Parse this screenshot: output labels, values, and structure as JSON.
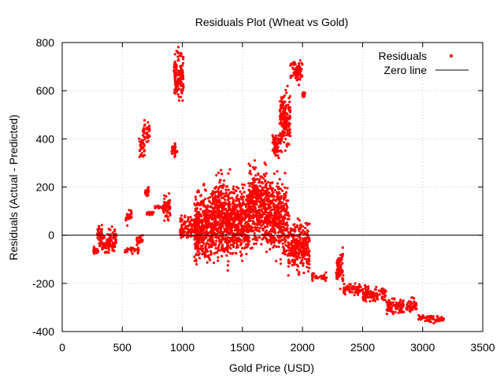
{
  "chart_data": {
    "type": "scatter",
    "title": "Residuals Plot (Wheat vs Gold)",
    "xlabel": "Gold Price (USD)",
    "ylabel": "Residuals (Actual - Predicted)",
    "xlim": [
      0,
      3500
    ],
    "ylim": [
      -400,
      800
    ],
    "xticks": [
      "0",
      "500",
      "1000",
      "1500",
      "2000",
      "2500",
      "3000",
      "3500"
    ],
    "yticks": [
      "-400",
      "-200",
      "0",
      "200",
      "400",
      "600",
      "800"
    ],
    "grid": true,
    "legend_position": "top-right",
    "colors": {
      "points": "#ff0000",
      "zero_line": "#000000",
      "grid": "#c8c8c8"
    },
    "series": [
      {
        "name": "Residuals",
        "style": "points",
        "clusters": [
          {
            "x": [
              255,
              300
            ],
            "y": [
              -90,
              -40
            ]
          },
          {
            "x": [
              290,
              345
            ],
            "y": [
              -80,
              60
            ]
          },
          {
            "x": [
              340,
              400
            ],
            "y": [
              -90,
              20
            ]
          },
          {
            "x": [
              380,
              450
            ],
            "y": [
              -95,
              50
            ]
          },
          {
            "x": [
              530,
              580
            ],
            "y": [
              30,
              130
            ]
          },
          {
            "x": [
              520,
              640
            ],
            "y": [
              -80,
              -40
            ]
          },
          {
            "x": [
              620,
              670
            ],
            "y": [
              -50,
              10
            ]
          },
          {
            "x": [
              640,
              690
            ],
            "y": [
              300,
              430
            ]
          },
          {
            "x": [
              670,
              730
            ],
            "y": [
              380,
              490
            ]
          },
          {
            "x": [
              690,
              720
            ],
            "y": [
              150,
              210
            ]
          },
          {
            "x": [
              700,
              760
            ],
            "y": [
              80,
              100
            ]
          },
          {
            "x": [
              760,
              860
            ],
            "y": [
              110,
              125
            ]
          },
          {
            "x": [
              840,
              900
            ],
            "y": [
              40,
              190
            ]
          },
          {
            "x": [
              910,
              960
            ],
            "y": [
              310,
              390
            ]
          },
          {
            "x": [
              930,
              1010
            ],
            "y": [
              520,
              800
            ]
          },
          {
            "x": [
              980,
              1140
            ],
            "y": [
              -50,
              100
            ]
          },
          {
            "x": [
              1100,
              1250
            ],
            "y": [
              -180,
              240
            ]
          },
          {
            "x": [
              1250,
              1400
            ],
            "y": [
              -180,
              320
            ]
          },
          {
            "x": [
              1400,
              1560
            ],
            "y": [
              -130,
              250
            ]
          },
          {
            "x": [
              1550,
              1700
            ],
            "y": [
              -100,
              340
            ]
          },
          {
            "x": [
              1700,
              1880
            ],
            "y": [
              -150,
              300
            ]
          },
          {
            "x": [
              1750,
              1830
            ],
            "y": [
              300,
              450
            ]
          },
          {
            "x": [
              1810,
              1900
            ],
            "y": [
              330,
              640
            ]
          },
          {
            "x": [
              1880,
              2060
            ],
            "y": [
              -190,
              100
            ]
          },
          {
            "x": [
              1900,
              2000
            ],
            "y": [
              620,
              740
            ]
          },
          {
            "x": [
              2000,
              2020
            ],
            "y": [
              570,
              600
            ]
          },
          {
            "x": [
              2080,
              2200
            ],
            "y": [
              -200,
              -150
            ]
          },
          {
            "x": [
              2280,
              2340
            ],
            "y": [
              -230,
              -40
            ]
          },
          {
            "x": [
              2340,
              2500
            ],
            "y": [
              -260,
              -190
            ]
          },
          {
            "x": [
              2500,
              2700
            ],
            "y": [
              -290,
              -200
            ]
          },
          {
            "x": [
              2700,
              2950
            ],
            "y": [
              -340,
              -250
            ]
          },
          {
            "x": [
              2950,
              3180
            ],
            "y": [
              -370,
              -320
            ]
          }
        ]
      },
      {
        "name": "Zero line",
        "style": "line",
        "x": [
          0,
          3500
        ],
        "y": [
          0,
          0
        ]
      }
    ]
  }
}
